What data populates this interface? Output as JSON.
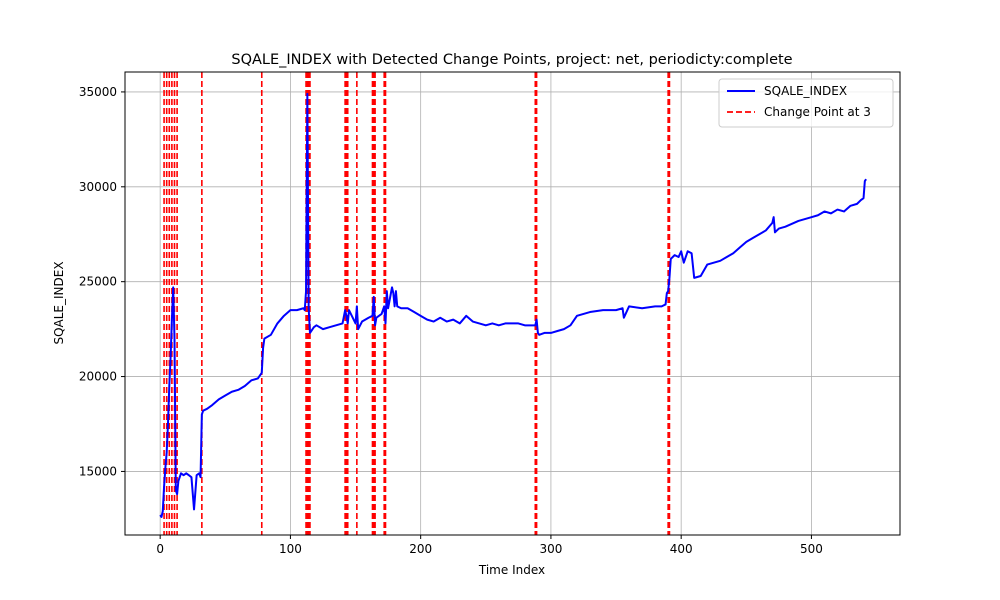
{
  "chart_data": {
    "type": "line",
    "title": "SQALE_INDEX with Detected Change Points, project: net, periodicty:complete",
    "xlabel": "Time Index",
    "ylabel": "SQALE_INDEX",
    "xlim": [
      -27,
      568
    ],
    "ylim": [
      11650,
      36050
    ],
    "xticks": [
      0,
      100,
      200,
      300,
      400,
      500
    ],
    "yticks": [
      15000,
      20000,
      25000,
      30000,
      35000
    ],
    "grid": true,
    "legend_position": "top-right",
    "legend": [
      {
        "label": "SQALE_INDEX",
        "style": "solid",
        "color": "#0000ff"
      },
      {
        "label": "Change Point at 3",
        "style": "dashed",
        "color": "#ff0000"
      }
    ],
    "series": [
      {
        "name": "SQALE_INDEX",
        "color": "#0000ff",
        "x": [
          0,
          1,
          2,
          3,
          4,
          5,
          6,
          7,
          8,
          9,
          10,
          11,
          12,
          13,
          14,
          15,
          16,
          18,
          20,
          22,
          24,
          26,
          28,
          30,
          31,
          32,
          33,
          36,
          40,
          45,
          50,
          55,
          60,
          65,
          70,
          75,
          78,
          79,
          80,
          85,
          90,
          95,
          100,
          105,
          110,
          111,
          112,
          113,
          114,
          115,
          116,
          118,
          120,
          125,
          130,
          135,
          140,
          142,
          143,
          144,
          145,
          150,
          151,
          152,
          155,
          160,
          163,
          164,
          165,
          166,
          170,
          172,
          173,
          174,
          175,
          178,
          179,
          180,
          181,
          182,
          185,
          190,
          195,
          200,
          205,
          210,
          215,
          220,
          225,
          230,
          235,
          240,
          245,
          250,
          255,
          260,
          265,
          270,
          275,
          280,
          285,
          288,
          289,
          290,
          291,
          295,
          300,
          305,
          310,
          315,
          320,
          330,
          340,
          350,
          355,
          356,
          360,
          370,
          380,
          385,
          388,
          389,
          390,
          391,
          392,
          395,
          398,
          400,
          402,
          405,
          408,
          410,
          415,
          420,
          425,
          430,
          435,
          440,
          445,
          450,
          455,
          460,
          465,
          470,
          471,
          472,
          475,
          480,
          490,
          500,
          505,
          510,
          515,
          520,
          525,
          530,
          535,
          538,
          540,
          541,
          542
        ],
        "y": [
          12700,
          12600,
          12900,
          14200,
          15200,
          16000,
          17500,
          19500,
          21000,
          23000,
          24700,
          22000,
          14000,
          13800,
          14500,
          14700,
          14900,
          14800,
          14900,
          14800,
          14700,
          13000,
          14800,
          14900,
          14700,
          18000,
          18200,
          18300,
          18500,
          18800,
          19000,
          19200,
          19300,
          19500,
          19800,
          19900,
          20200,
          21500,
          22000,
          22200,
          22800,
          23200,
          23500,
          23500,
          23600,
          23500,
          24500,
          34900,
          23600,
          22300,
          22400,
          22600,
          22700,
          22500,
          22600,
          22700,
          22800,
          23500,
          23200,
          22800,
          23500,
          22800,
          23700,
          22500,
          22900,
          23100,
          23200,
          24200,
          22700,
          23100,
          23300,
          23700,
          22800,
          24500,
          23600,
          24700,
          24400,
          23700,
          24500,
          23700,
          23600,
          23600,
          23400,
          23200,
          23000,
          22900,
          23100,
          22900,
          23000,
          22800,
          23200,
          22900,
          22800,
          22700,
          22800,
          22700,
          22800,
          22800,
          22800,
          22700,
          22700,
          22700,
          23000,
          22300,
          22200,
          22300,
          22300,
          22400,
          22500,
          22700,
          23200,
          23400,
          23500,
          23500,
          23600,
          23100,
          23700,
          23600,
          23700,
          23700,
          23800,
          24400,
          24500,
          25200,
          26200,
          26400,
          26300,
          26600,
          26000,
          26600,
          26500,
          25200,
          25300,
          25900,
          26000,
          26100,
          26300,
          26500,
          26800,
          27100,
          27300,
          27500,
          27700,
          28100,
          28400,
          27600,
          27800,
          27900,
          28200,
          28400,
          28500,
          28700,
          28600,
          28800,
          28700,
          29000,
          29100,
          29300,
          29400,
          30300,
          30400
        ]
      }
    ],
    "change_points": [
      3,
      5,
      7,
      9,
      11,
      13,
      32,
      78,
      112,
      113,
      114,
      115,
      142,
      143,
      144,
      151,
      163,
      164,
      165,
      172,
      173,
      288,
      289,
      390,
      391
    ]
  }
}
